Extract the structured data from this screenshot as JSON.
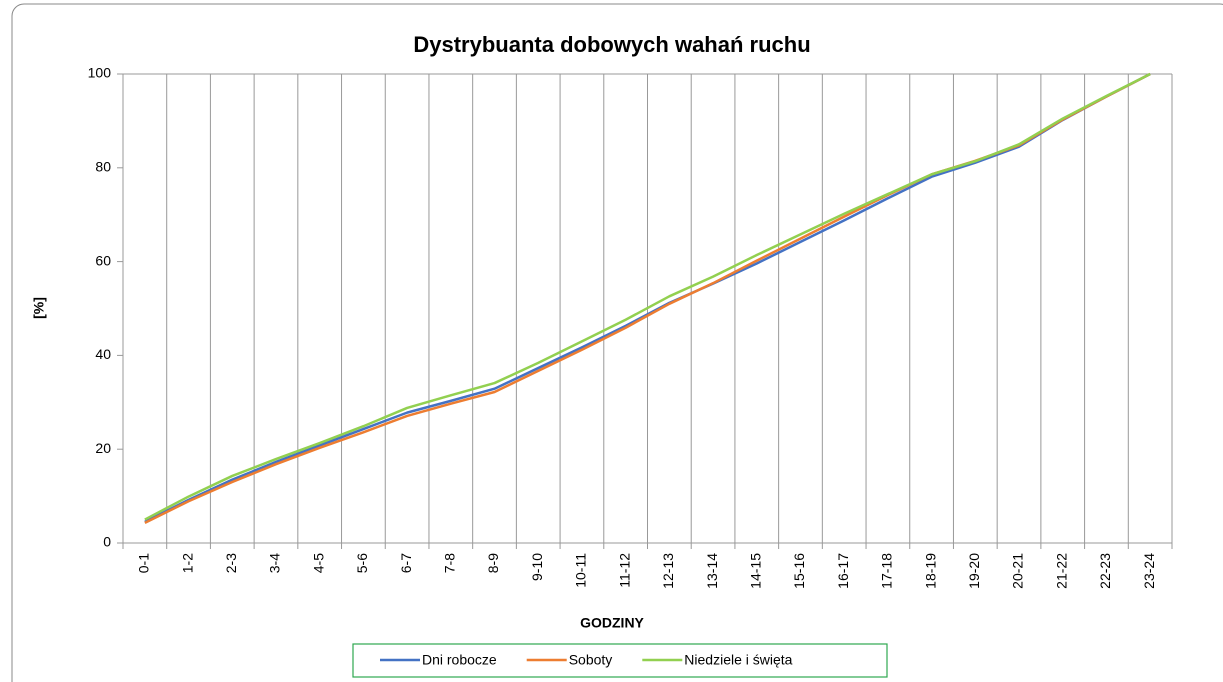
{
  "chart_data": {
    "type": "line",
    "title": "Dystrybuanta dobowych wahań ruchu",
    "x_label": "GODZINY",
    "y_label": "[%]",
    "categories": [
      "0-1",
      "1-2",
      "2-3",
      "3-4",
      "4-5",
      "5-6",
      "6-7",
      "7-8",
      "8-9",
      "9-10",
      "10-11",
      "11-12",
      "12-13",
      "13-14",
      "14-15",
      "15-16",
      "16-17",
      "17-18",
      "18-19",
      "19-20",
      "20-21",
      "21-22",
      "22-23",
      "23-24"
    ],
    "series": [
      {
        "name": "Dni robocze",
        "color": "#4472c4",
        "values": [
          4.5,
          9.2,
          13.5,
          17.3,
          20.8,
          24.3,
          27.8,
          30.3,
          32.9,
          37.3,
          41.7,
          46.3,
          51.2,
          55.3,
          59.6,
          64.2,
          68.8,
          73.5,
          78.1,
          81.1,
          84.5,
          90.2,
          95.2,
          100
        ]
      },
      {
        "name": "Soboty",
        "color": "#ed7d31",
        "values": [
          4.3,
          8.9,
          13.0,
          16.8,
          20.3,
          23.6,
          27.1,
          29.7,
          32.2,
          36.7,
          41.2,
          45.9,
          51.0,
          55.4,
          60.2,
          64.9,
          69.6,
          74.2,
          78.6,
          81.5,
          84.8,
          90.3,
          95.2,
          100
        ]
      },
      {
        "name": "Niedziele i święta",
        "color": "#92d050",
        "values": [
          5.0,
          9.9,
          14.3,
          17.9,
          21.3,
          24.9,
          28.8,
          31.5,
          34.1,
          38.4,
          43.0,
          47.6,
          52.6,
          56.8,
          61.4,
          65.8,
          70.2,
          74.4,
          78.6,
          81.4,
          85.0,
          90.5,
          95.3,
          100
        ]
      }
    ],
    "ylim": [
      0,
      100
    ],
    "yticks": [
      0,
      20,
      40,
      60,
      80,
      100
    ],
    "legend_position": "bottom"
  }
}
